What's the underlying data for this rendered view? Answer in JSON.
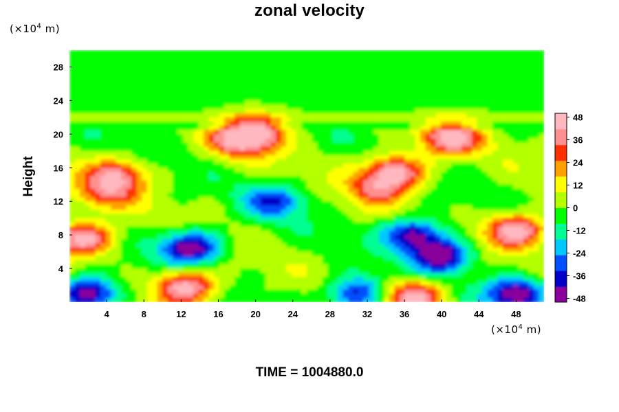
{
  "chart_data": {
    "type": "heatmap",
    "title": "zonal velocity",
    "ylabel": "Height",
    "xlabel": "",
    "x_unit": {
      "prefix": "(×10",
      "exp": "4",
      "suffix": " m)"
    },
    "y_unit": {
      "prefix": "(×10",
      "exp": "4",
      "suffix": " m)"
    },
    "xlim": [
      0,
      51
    ],
    "ylim": [
      0,
      30
    ],
    "x_ticks": [
      4,
      8,
      12,
      16,
      20,
      24,
      28,
      32,
      36,
      40,
      44,
      48
    ],
    "y_ticks": [
      4,
      8,
      12,
      16,
      20,
      24,
      28
    ],
    "colorbar": {
      "ticks": [
        48,
        36,
        24,
        12,
        0,
        -12,
        -24,
        -36,
        -48
      ],
      "range": [
        -50,
        50
      ],
      "colors": [
        "#8a009a",
        "#0000c8",
        "#0050ff",
        "#00c8ff",
        "#00ff90",
        "#00ff00",
        "#b4ff00",
        "#ffff00",
        "#ffa000",
        "#ff3000",
        "#ff9090",
        "#ffb8c0"
      ]
    },
    "features": [
      {
        "x": 13,
        "y": 6.5,
        "value": -50
      },
      {
        "x": 37,
        "y": 8,
        "value": -45
      },
      {
        "x": 40,
        "y": 5.5,
        "value": -50
      },
      {
        "x": 22,
        "y": 12,
        "value": -32
      },
      {
        "x": 2,
        "y": 1,
        "value": -50
      },
      {
        "x": 48,
        "y": 1,
        "value": -50
      },
      {
        "x": 31,
        "y": 1,
        "value": -40
      },
      {
        "x": 1.5,
        "y": 7.5,
        "value": 50
      },
      {
        "x": 48,
        "y": 8.5,
        "value": 50
      },
      {
        "x": 12.5,
        "y": 1.8,
        "value": 50
      },
      {
        "x": 37,
        "y": 0.6,
        "value": 48
      },
      {
        "x": 35,
        "y": 15.5,
        "value": 48
      },
      {
        "x": 41,
        "y": 19.5,
        "value": 48
      },
      {
        "x": 5,
        "y": 15,
        "value": 38
      },
      {
        "x": 18,
        "y": 19.2,
        "value": 34
      },
      {
        "x": 4,
        "y": 13,
        "value": 28
      },
      {
        "x": 33,
        "y": 13.5,
        "value": 30
      },
      {
        "x": 20,
        "y": 20.2,
        "value": 46
      }
    ],
    "time_label": "TIME = 1004880.0"
  }
}
